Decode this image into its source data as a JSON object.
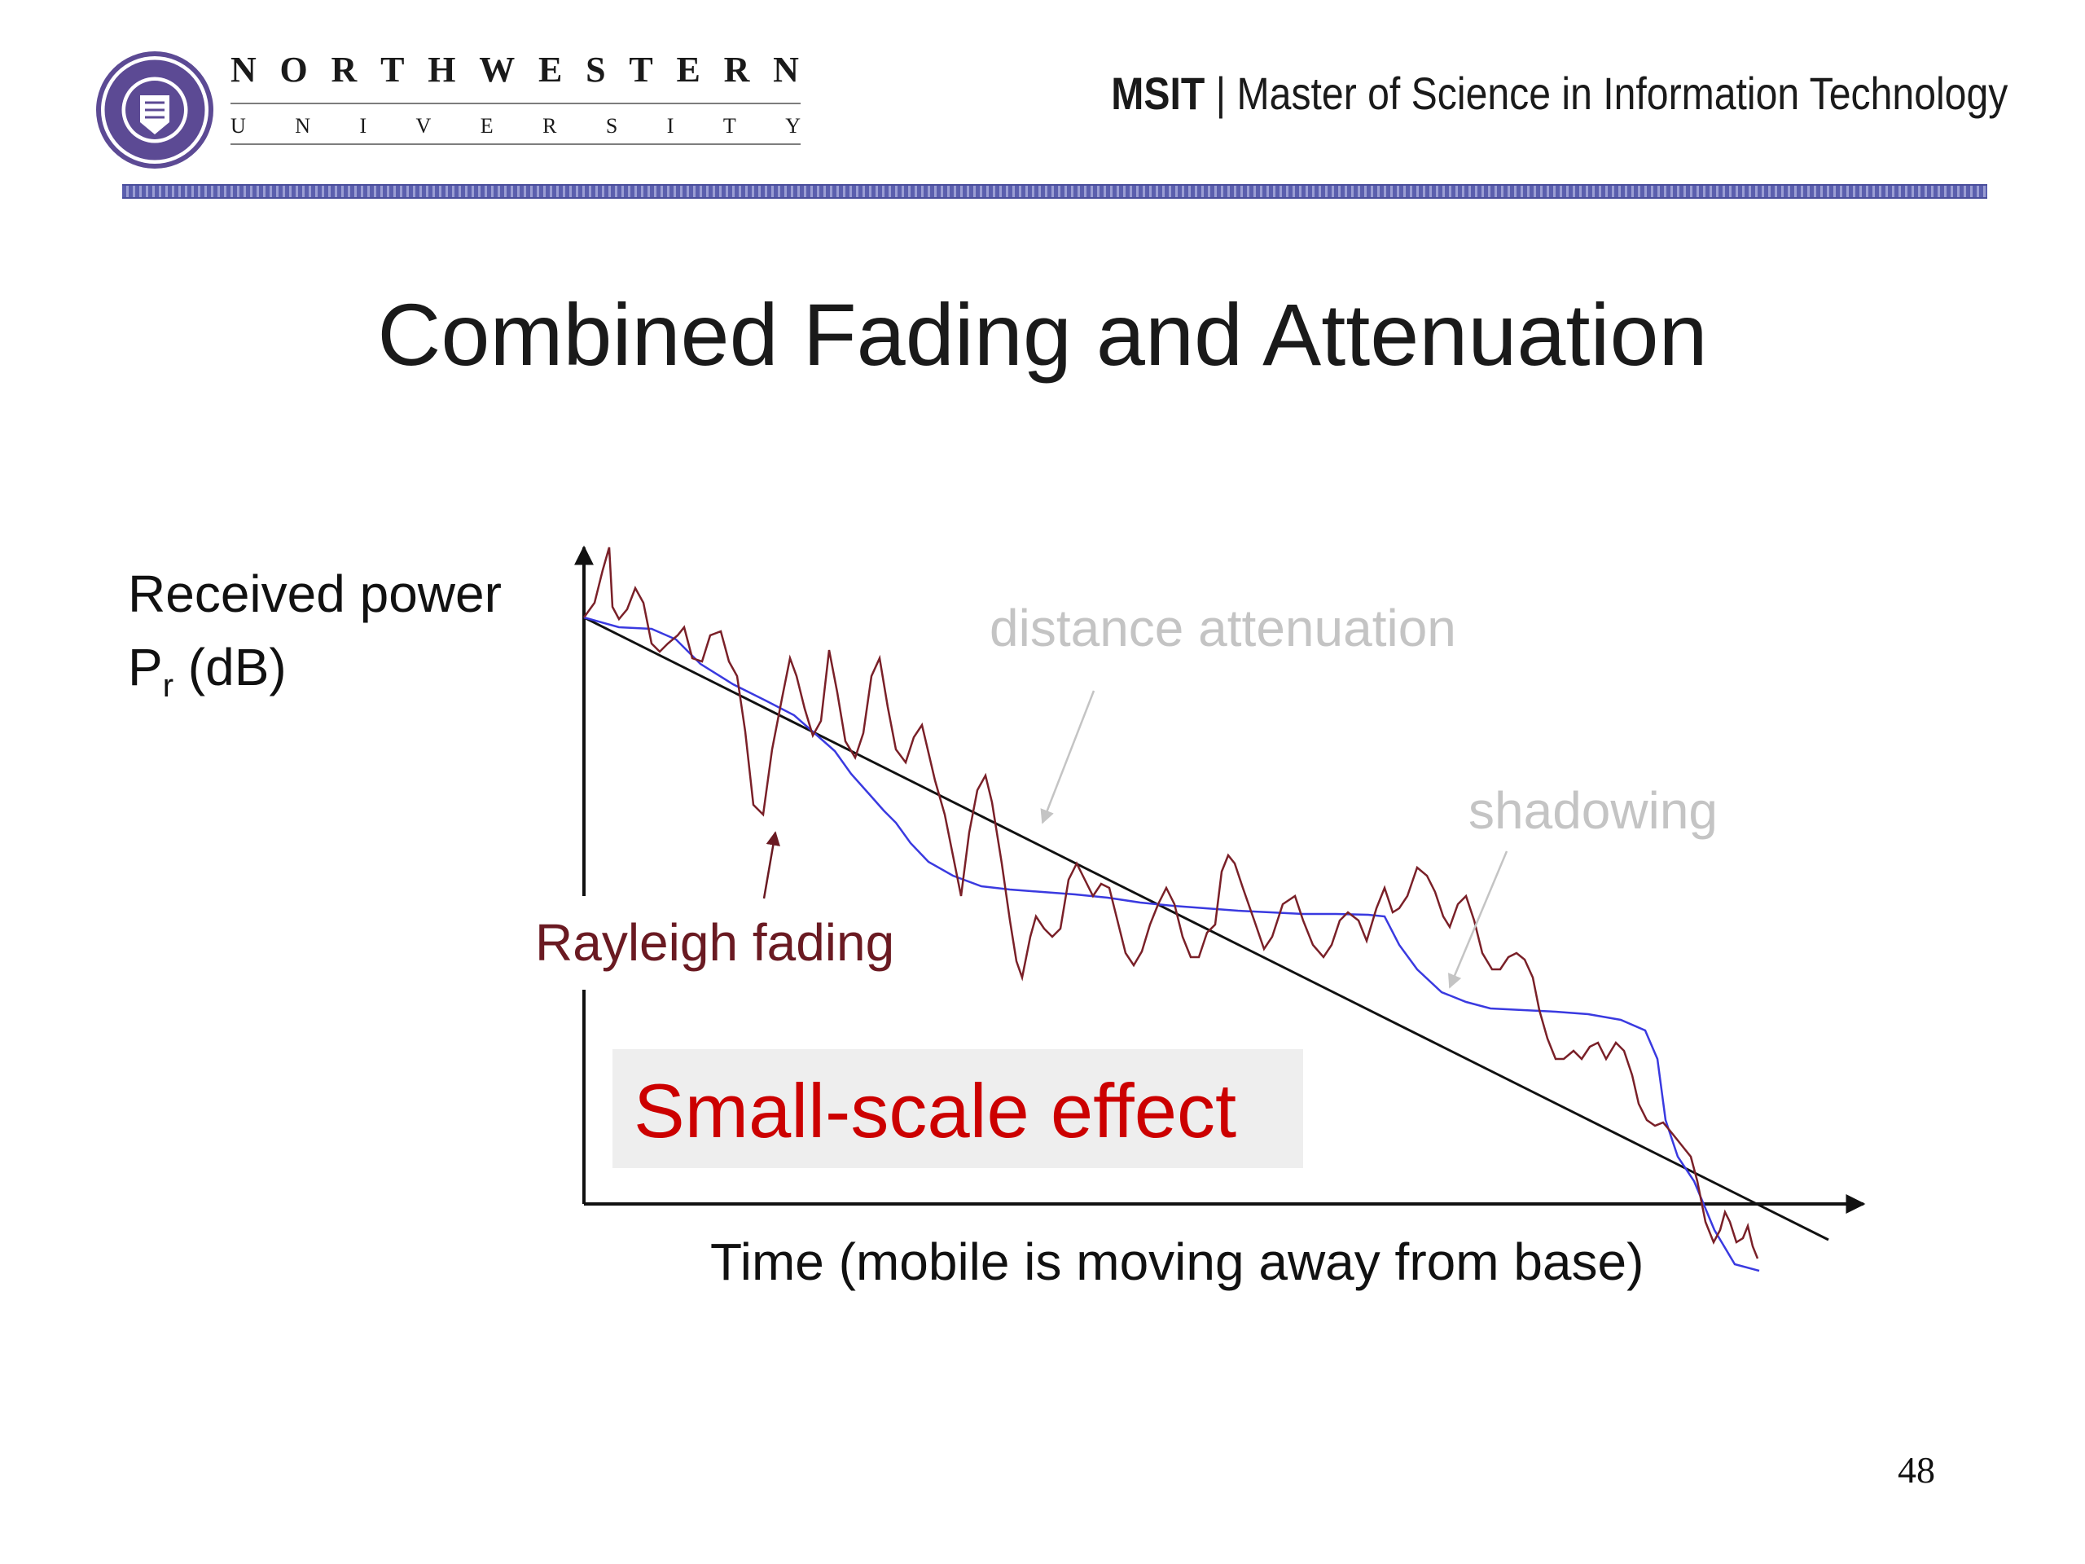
{
  "header": {
    "logo_top": [
      "N",
      "O",
      "R",
      "T",
      "H",
      "W",
      "E",
      "S",
      "T",
      "E",
      "R",
      "N"
    ],
    "logo_bottom": [
      "U",
      "N",
      "I",
      "V",
      "E",
      "R",
      "S",
      "I",
      "T",
      "Y"
    ],
    "program_short": "MSIT",
    "separator": "|",
    "program_long": "Master of Science in Information Technology"
  },
  "slide": {
    "title": "Combined Fading and Attenuation",
    "page_number": "48"
  },
  "diagram": {
    "y_label_line1": "Received power",
    "y_label_line2_main": "P",
    "y_label_line2_sub": "r",
    "y_label_line2_unit": " (dB)",
    "x_label": "Time (mobile is moving away from base)",
    "annotation_distance": "distance attenuation",
    "annotation_shadowing": "shadowing",
    "annotation_rayleigh": "Rayleigh fading",
    "effect_label": "Small-scale effect",
    "colors": {
      "rayleigh_curve": "#7a2028",
      "shadowing_curve": "#3a3ae0",
      "attenuation_line": "#111111",
      "effect_text": "#cc0000",
      "gray_label": "#c4c4c4"
    }
  }
}
